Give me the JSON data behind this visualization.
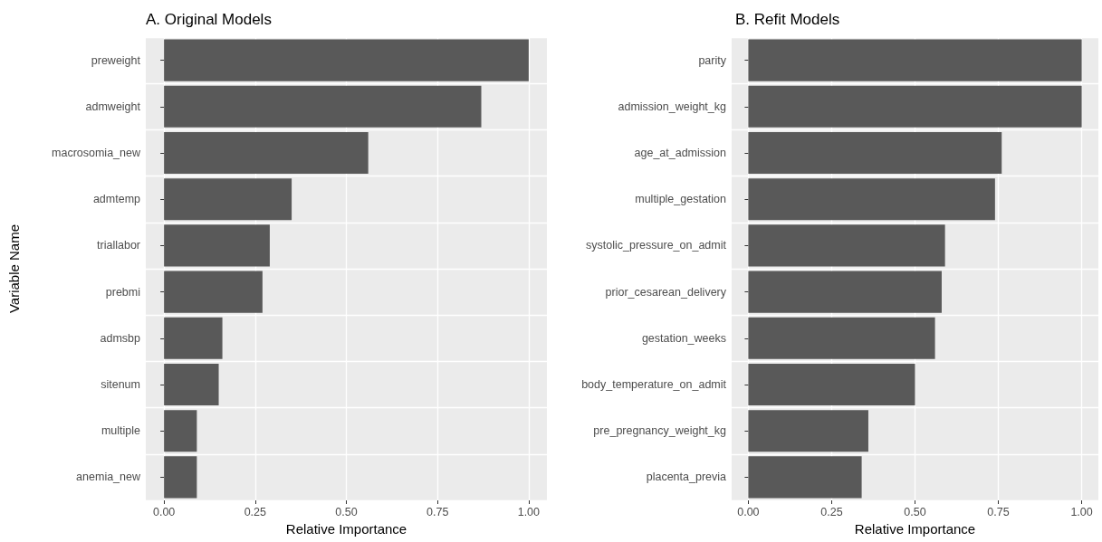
{
  "chart_data": [
    {
      "type": "bar",
      "orientation": "horizontal",
      "title": "A. Original Models",
      "xlabel": "Relative Importance",
      "ylabel": "Variable Name",
      "categories": [
        "preweight",
        "admweight",
        "macrosomia_new",
        "admtemp",
        "triallabor",
        "prebmi",
        "admsbp",
        "sitenum",
        "multiple",
        "anemia_new"
      ],
      "values": [
        1.0,
        0.87,
        0.56,
        0.35,
        0.29,
        0.27,
        0.16,
        0.15,
        0.09,
        0.09
      ],
      "color": "#595959",
      "xlim": [
        -0.05,
        1.05
      ],
      "xticks": [
        {
          "value": 0,
          "label": "0.00"
        },
        {
          "value": 0.25,
          "label": "0.25"
        },
        {
          "value": 0.5,
          "label": "0.50"
        },
        {
          "value": 0.75,
          "label": "0.75"
        },
        {
          "value": 1,
          "label": "1.00"
        }
      ],
      "grid": true
    },
    {
      "type": "bar",
      "orientation": "horizontal",
      "title": "B. Refit Models",
      "xlabel": "Relative Importance",
      "categories": [
        "parity",
        "admission_weight_kg",
        "age_at_admission",
        "multiple_gestation",
        "systolic_pressure_on_admit",
        "prior_cesarean_delivery",
        "gestation_weeks",
        "body_temperature_on_admit",
        "pre_pregnancy_weight_kg",
        "placenta_previa"
      ],
      "values": [
        1.0,
        1.0,
        0.76,
        0.74,
        0.59,
        0.58,
        0.56,
        0.5,
        0.36,
        0.34
      ],
      "color": "#595959",
      "xlim": [
        -0.05,
        1.05
      ],
      "xticks": [
        {
          "value": 0,
          "label": "0.00"
        },
        {
          "value": 0.25,
          "label": "0.25"
        },
        {
          "value": 0.5,
          "label": "0.50"
        },
        {
          "value": 0.75,
          "label": "0.75"
        },
        {
          "value": 1,
          "label": "1.00"
        }
      ],
      "grid": true
    }
  ]
}
